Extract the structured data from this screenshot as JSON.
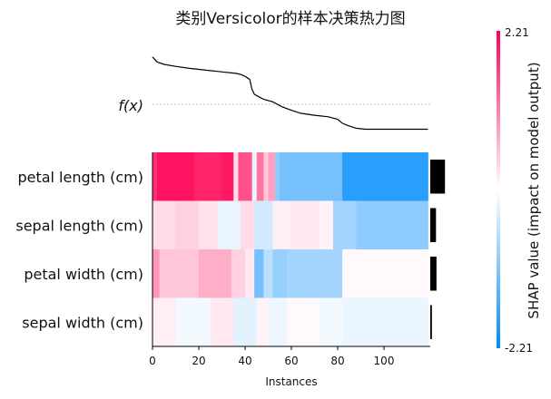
{
  "chart_data": {
    "type": "heatmap",
    "title": "类别Versicolor的样本决策热力图",
    "fx_label": "f(x)",
    "xlabel": "Instances",
    "x_ticks": [
      0,
      20,
      40,
      60,
      80,
      100
    ],
    "n_instances": 120,
    "features": [
      "petal length (cm)",
      "sepal length (cm)",
      "petal width (cm)",
      "sepal width (cm)"
    ],
    "feature_importance": [
      0.9,
      0.35,
      0.38,
      0.1
    ],
    "fx_curve": {
      "x": [
        0,
        2,
        5,
        10,
        16,
        20,
        24,
        28,
        32,
        36,
        38,
        40,
        42,
        43,
        44,
        46,
        48,
        52,
        56,
        60,
        64,
        70,
        76,
        80,
        82,
        84,
        88,
        92,
        100,
        110,
        119
      ],
      "y": [
        0.95,
        0.85,
        0.8,
        0.76,
        0.72,
        0.7,
        0.68,
        0.66,
        0.64,
        0.62,
        0.6,
        0.56,
        0.5,
        0.3,
        0.2,
        0.15,
        0.1,
        0.05,
        -0.05,
        -0.12,
        -0.18,
        -0.22,
        -0.25,
        -0.3,
        -0.38,
        -0.42,
        -0.48,
        -0.5,
        -0.5,
        -0.5,
        -0.5
      ]
    },
    "segments": [
      {
        "feature": "petal length (cm)",
        "blocks": [
          [
            0,
            2,
            1.8
          ],
          [
            2,
            18,
            2.05
          ],
          [
            18,
            30,
            1.9
          ],
          [
            30,
            35,
            2.0
          ],
          [
            35,
            37,
            0.3
          ],
          [
            37,
            43,
            1.5
          ],
          [
            43,
            45,
            -0.2
          ],
          [
            45,
            48,
            1.2
          ],
          [
            48,
            50,
            0.5
          ],
          [
            50,
            53,
            0.8
          ],
          [
            53,
            55,
            -1.0
          ],
          [
            55,
            82,
            -1.2
          ],
          [
            82,
            119,
            -1.85
          ]
        ]
      },
      {
        "feature": "sepal length (cm)",
        "blocks": [
          [
            0,
            10,
            0.3
          ],
          [
            10,
            20,
            0.4
          ],
          [
            20,
            28,
            0.25
          ],
          [
            28,
            38,
            -0.2
          ],
          [
            38,
            44,
            0.3
          ],
          [
            44,
            52,
            -0.4
          ],
          [
            52,
            60,
            0.15
          ],
          [
            60,
            72,
            0.2
          ],
          [
            72,
            78,
            0.1
          ],
          [
            78,
            88,
            -0.8
          ],
          [
            88,
            119,
            -1.0
          ]
        ]
      },
      {
        "feature": "petal width (cm)",
        "blocks": [
          [
            0,
            3,
            0.9
          ],
          [
            3,
            20,
            0.5
          ],
          [
            20,
            34,
            0.7
          ],
          [
            34,
            40,
            0.4
          ],
          [
            40,
            44,
            0.2
          ],
          [
            44,
            48,
            -1.2
          ],
          [
            48,
            52,
            -0.6
          ],
          [
            52,
            58,
            -0.9
          ],
          [
            58,
            82,
            -0.8
          ],
          [
            82,
            119,
            0.05
          ]
        ]
      },
      {
        "feature": "sepal width (cm)",
        "blocks": [
          [
            0,
            10,
            0.15
          ],
          [
            10,
            25,
            -0.1
          ],
          [
            25,
            35,
            0.2
          ],
          [
            35,
            45,
            -0.25
          ],
          [
            45,
            50,
            0.1
          ],
          [
            50,
            58,
            -0.15
          ],
          [
            58,
            72,
            0.05
          ],
          [
            72,
            82,
            -0.1
          ],
          [
            82,
            119,
            -0.18
          ]
        ]
      }
    ],
    "colorbar": {
      "label": "SHAP value (impact on model output)",
      "max_label": "2.21",
      "min_label": "-2.21",
      "vmin": -2.21,
      "vmax": 2.21,
      "color_low": "#008bfb",
      "color_mid": "#ffffff",
      "color_high": "#ff0052"
    },
    "reference_line_color": "#aaaaaa"
  }
}
